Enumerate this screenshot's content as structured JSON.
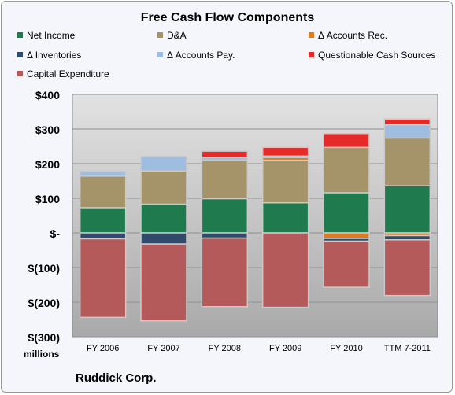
{
  "chart_data": {
    "type": "bar",
    "stacked": true,
    "title": "Free Cash Flow Components",
    "ylabel": "",
    "xlabel": "",
    "units_label": "millions",
    "footer": "Ruddick Corp.",
    "ylim": [
      -300,
      400
    ],
    "yticks": [
      {
        "value": 400,
        "label": "$400"
      },
      {
        "value": 300,
        "label": "$300"
      },
      {
        "value": 200,
        "label": "$200"
      },
      {
        "value": 100,
        "label": "$100"
      },
      {
        "value": 0,
        "label": "$-"
      },
      {
        "value": -100,
        "label": "$(100)"
      },
      {
        "value": -200,
        "label": "$(200)"
      },
      {
        "value": -300,
        "label": "$(300)"
      }
    ],
    "categories": [
      "FY 2006",
      "FY 2007",
      "FY 2008",
      "FY 2009",
      "FY 2010",
      "TTM 7-2011"
    ],
    "grid": true,
    "legend_position": "top",
    "series": [
      {
        "name": "Net Income",
        "color": "#1f7a4d",
        "values": [
          73,
          83,
          99,
          87,
          116,
          136
        ]
      },
      {
        "name": "D&A",
        "color": "#a5946a",
        "values": [
          91,
          96,
          111,
          123,
          131,
          138
        ]
      },
      {
        "name": "Δ Accounts Rec.",
        "color": "#e07a1a",
        "values": [
          0,
          0,
          0,
          8,
          -16,
          -8
        ]
      },
      {
        "name": "Δ Inventories",
        "color": "#2f4a6b",
        "values": [
          -17,
          -32,
          -15,
          0,
          -8,
          -12
        ]
      },
      {
        "name": "Δ Accounts Pay.",
        "color": "#9fbde0",
        "values": [
          14,
          42,
          8,
          4,
          0,
          38
        ]
      },
      {
        "name": "Questionable Cash Sources",
        "color": "#e52a2a",
        "values": [
          0,
          0,
          18,
          25,
          40,
          17
        ]
      },
      {
        "name": "Capital Expenditure",
        "color": "#b55a5a",
        "values": [
          -227,
          -222,
          -198,
          -215,
          -133,
          -161
        ]
      }
    ]
  }
}
